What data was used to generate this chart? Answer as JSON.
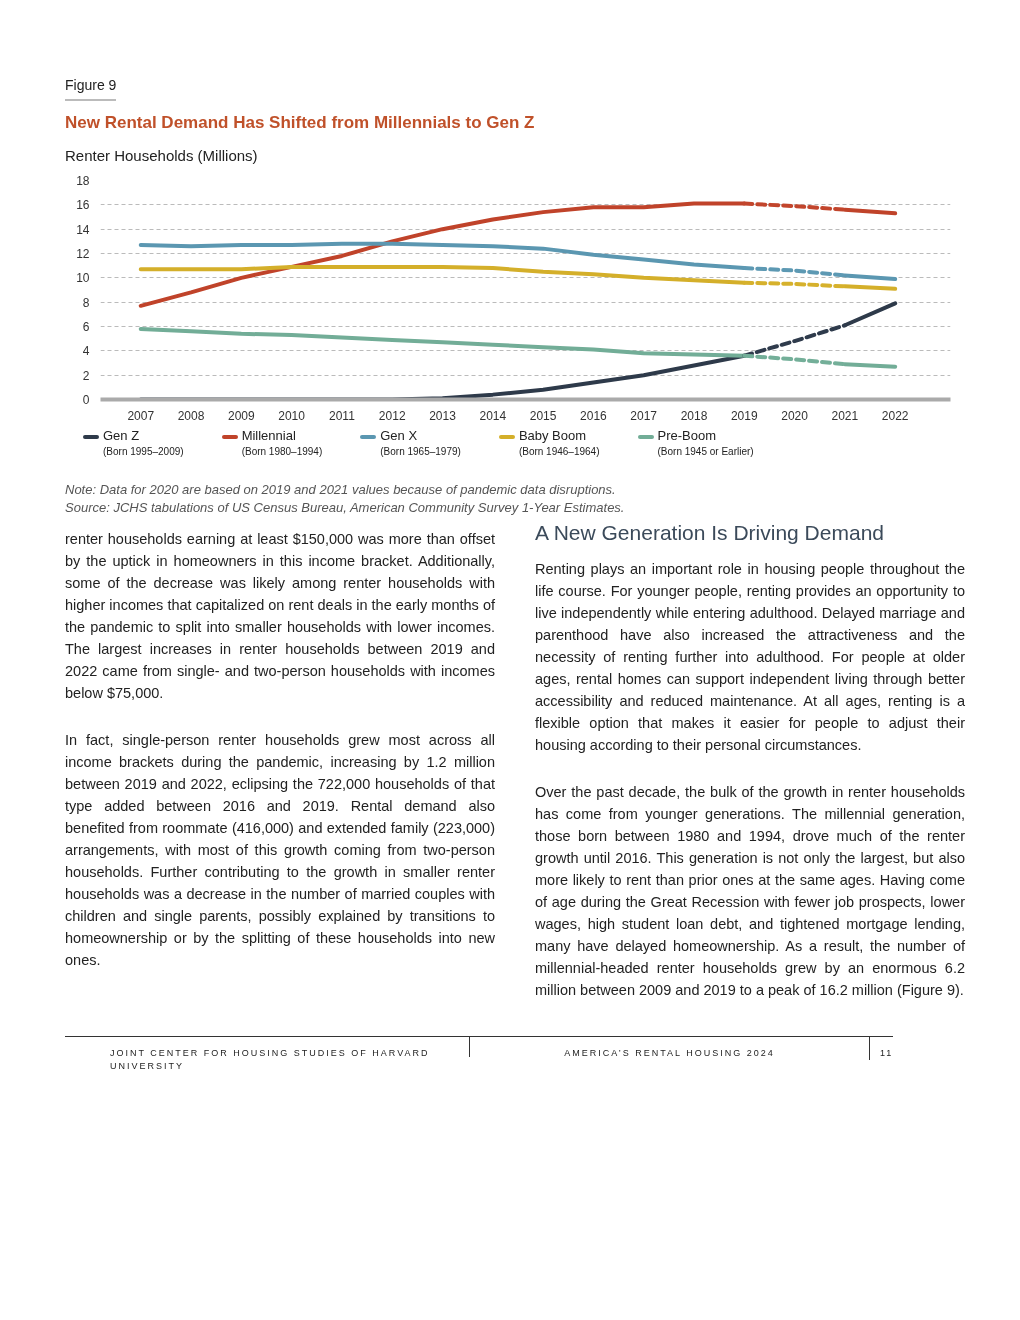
{
  "chart_data": {
    "type": "line",
    "title": "New Rental Demand Has Shifted from Millennials to Gen Z",
    "ylabel": "Renter Households (Millions)",
    "x": [
      2007,
      2008,
      2009,
      2010,
      2011,
      2012,
      2013,
      2014,
      2015,
      2016,
      2017,
      2018,
      2019,
      2020,
      2021,
      2022
    ],
    "xlim": [
      2006.2,
      2023.1
    ],
    "xticks": [
      2007,
      2008,
      2009,
      2010,
      2011,
      2012,
      2013,
      2014,
      2015,
      2016,
      2017,
      2018,
      2019,
      2020,
      2021,
      2022
    ],
    "ylim": [
      0,
      18
    ],
    "yticks": [
      0,
      2,
      4,
      6,
      8,
      10,
      12,
      14,
      16,
      18
    ],
    "grid": "y",
    "legend": "bottom",
    "line_style": "solid",
    "marker": "none",
    "series": [
      {
        "name": "Gen Z\n(Born 1995–2009)",
        "color": "#2e3a4a",
        "values": [
          0,
          0,
          0,
          0,
          0,
          0,
          0.1,
          0.4,
          0.8,
          1.4,
          2.0,
          2.8,
          3.6,
          null,
          6.1,
          7.9
        ]
      },
      {
        "name": "Millennial\n(Born 1980–1994)",
        "color": "#c0432a",
        "values": [
          7.7,
          8.8,
          10.0,
          10.9,
          11.8,
          13.0,
          14.0,
          14.8,
          15.4,
          15.8,
          15.8,
          16.1,
          16.1,
          null,
          15.6,
          15.3
        ]
      },
      {
        "name": "Gen X\n(Born 1965–1979)",
        "color": "#5b97b1",
        "values": [
          12.7,
          12.6,
          12.7,
          12.7,
          12.8,
          12.8,
          12.7,
          12.6,
          12.4,
          11.9,
          11.5,
          11.1,
          10.8,
          null,
          10.2,
          9.9
        ]
      },
      {
        "name": "Baby Boom\n(Born 1946–1964)",
        "color": "#d4af2a",
        "values": [
          10.7,
          10.7,
          10.7,
          10.9,
          10.9,
          10.9,
          10.9,
          10.8,
          10.5,
          10.3,
          10.0,
          9.8,
          9.6,
          null,
          9.3,
          9.1
        ]
      },
      {
        "name": "Pre-Boom\n(Born 1945 or Earlier)",
        "color": "#72ad97",
        "values": [
          5.8,
          5.6,
          5.4,
          5.3,
          5.1,
          4.9,
          4.7,
          4.5,
          4.3,
          4.1,
          3.8,
          3.7,
          3.6,
          null,
          2.9,
          2.7
        ]
      },
      {
        "color": "#2f3b4c",
        "x": [
          2019,
          2020,
          2021
        ],
        "values": [
          3.6,
          4.8,
          6.1
        ],
        "line_style": "dashed"
      },
      {
        "color": "#c2452c",
        "x": [
          2019,
          2020,
          2021
        ],
        "values": [
          16.1,
          15.9,
          15.6
        ],
        "line_style": "dashed"
      },
      {
        "color": "#5d99b3",
        "x": [
          2019,
          2020,
          2021
        ],
        "values": [
          10.8,
          10.6,
          10.2
        ],
        "line_style": "dashed"
      },
      {
        "color": "#d6b12c",
        "x": [
          2019,
          2020,
          2021
        ],
        "values": [
          9.6,
          9.5,
          9.3
        ],
        "line_style": "dashed"
      },
      {
        "color": "#74af99",
        "x": [
          2019,
          2020,
          2021
        ],
        "values": [
          3.6,
          3.3,
          2.9
        ],
        "line_style": "dashed"
      }
    ],
    "annotations": [
      "Figure 9",
      "Note: Data for 2020 are based on 2019 and 2021 values because of pandemic data disruptions.",
      "Source: JCHS tabulations of US Census Bureau, American Community Survey 1-Year Estimates.",
      "renter households earning at least $150,000 was more than offset by the uptick in homeowners in this income bracket. Additionally, some of the decrease was likely among renter households with higher incomes that capitalized on rent deals in the early months of the pandemic to split into smaller households with lower incomes. The largest increases in renter households between 2019 and 2022 came from single- and two-person households with incomes below $75,000.",
      "In fact, single-person renter households grew most across all income brackets during the pandemic, increasing by 1.2 million between 2019 and 2022, eclipsing the 722,000 households of that type added between 2016 and 2019. Rental demand also benefited from roommate (416,000) and extended family (223,000) arrangements, with most of this growth coming from two-person households. Further contributing to the growth in smaller renter households was a decrease in the number of married couples with children and single parents, possibly explained by transitions to homeownership or by the splitting of these households into new ones.",
      "A New Generation Is Driving Demand",
      "Renting plays an important role in housing people throughout the life course. For younger people, renting provides an opportunity to live independently while entering adulthood. Delayed marriage and parenthood have also increased the attractiveness and the necessity of renting further into adulthood. For people at older ages, rental homes can support independent living through better accessibility and reduced maintenance. At all ages, renting is a flexible option that makes it easier for people to adjust their housing according to their personal circumstances.",
      "Over the past decade, the bulk of the growth in renter households has come from younger generations. The millennial generation, those born between 1980 and 1994, drove much of the renter growth until 2016. This generation is not only the largest, but also more likely to rent than prior ones at the same ages. Having come of age during the Great Recession with fewer job prospects, lower wages, high student loan debt, and tightened mortgage lending, many have delayed homeownership. As a result, the number of millennial-headed renter households grew by an enormous 6.2 million between 2009 and 2019 to a peak of 16.2 million (Figure 9).",
      "JOINT CENTER FOR HOUSING STUDIES OF HARVARD UNIVERSITY",
      "AMERICA’S RENTAL HOUSING 2024",
      "11"
    ]
  }
}
